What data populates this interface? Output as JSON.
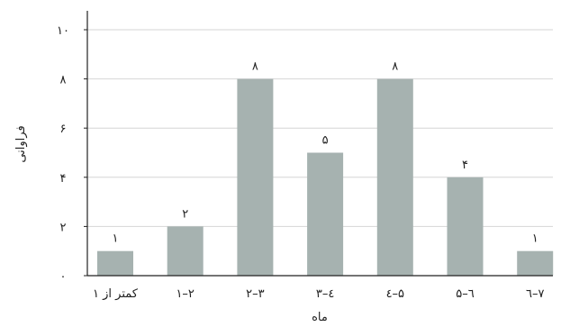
{
  "chart_data": {
    "type": "bar",
    "title": "",
    "xlabel": "ماه",
    "ylabel": "فراوانی",
    "categories": [
      "کمتر از ۱",
      "۱–۲",
      "۲–۳",
      "۳–٤",
      "٤–۵",
      "۵–٦",
      "٦–۷"
    ],
    "values": [
      1,
      2,
      8,
      5,
      8,
      4,
      1
    ],
    "value_labels": [
      "۱",
      "۲",
      "۸",
      "۵",
      "۸",
      "۴",
      "۱"
    ],
    "ylim": [
      0,
      10
    ],
    "yticks": [
      0,
      2,
      4,
      6,
      8,
      10
    ],
    "ytick_labels": [
      "۰",
      "۲",
      "۴",
      "۶",
      "۸",
      "۱۰"
    ],
    "grid": "horizontal",
    "legend": "none",
    "bar_color": "#a6b2b0",
    "grid_color": "#d6d6d6",
    "axis_color": "#222222"
  }
}
